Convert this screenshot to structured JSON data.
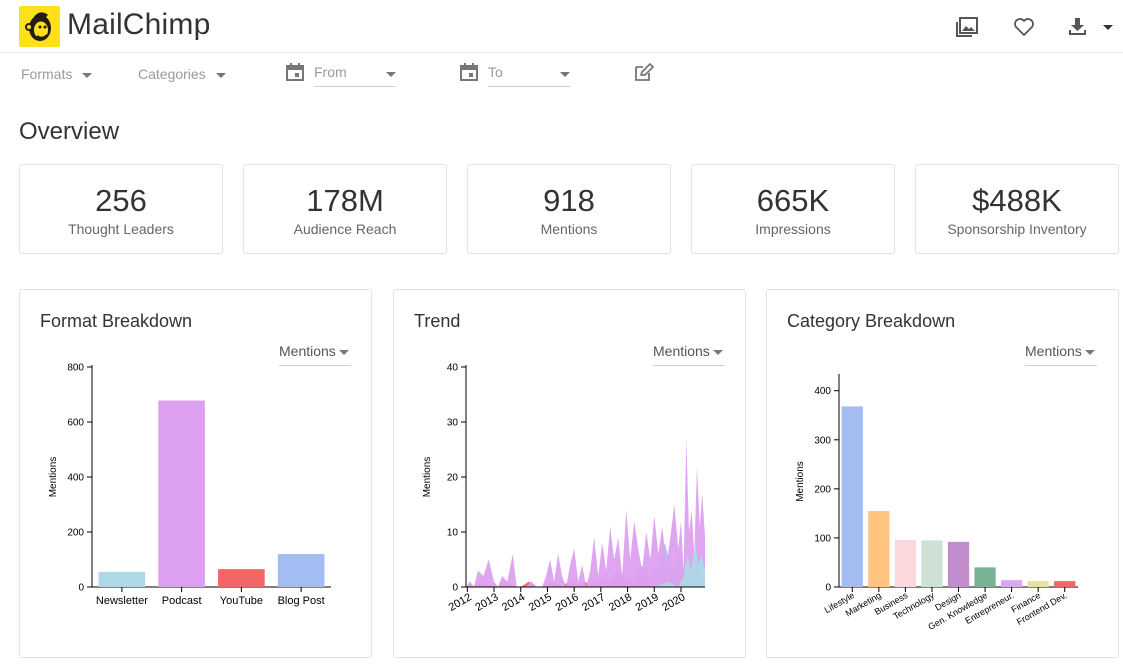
{
  "header": {
    "app_title": "MailChimp",
    "icons": [
      "image-gallery-icon",
      "heart-icon",
      "download-icon",
      "caret-down-icon"
    ]
  },
  "filters": {
    "formats_label": "Formats",
    "categories_label": "Categories",
    "from_placeholder": "From",
    "to_placeholder": "To"
  },
  "overview": {
    "title": "Overview",
    "stats": [
      {
        "value": "256",
        "label": "Thought Leaders"
      },
      {
        "value": "178M",
        "label": "Audience Reach"
      },
      {
        "value": "918",
        "label": "Mentions"
      },
      {
        "value": "665K",
        "label": "Impressions"
      },
      {
        "value": "$488K",
        "label": "Sponsorship Inventory"
      }
    ]
  },
  "panels": {
    "format": {
      "title": "Format Breakdown",
      "metric": "Mentions"
    },
    "trend": {
      "title": "Trend",
      "metric": "Mentions"
    },
    "category": {
      "title": "Category Breakdown",
      "metric": "Mentions"
    }
  },
  "chart_data": [
    {
      "type": "bar",
      "title": "Format Breakdown",
      "xlabel": "",
      "ylabel": "Mentions",
      "ylim": [
        0,
        800
      ],
      "yticks": [
        0,
        200,
        400,
        600,
        800
      ],
      "categories": [
        "Newsletter",
        "Podcast",
        "YouTube",
        "Blog Post"
      ],
      "values": [
        55,
        678,
        65,
        120
      ],
      "colors": [
        "#add8e6",
        "#dda0f0",
        "#f26666",
        "#a3bdf2"
      ]
    },
    {
      "type": "area",
      "title": "Trend",
      "xlabel": "",
      "ylabel": "Mentions",
      "ylim": [
        0,
        40
      ],
      "yticks": [
        0,
        10,
        20,
        30,
        40
      ],
      "xlim": [
        2011.95,
        2020.9
      ],
      "xticks": [
        "2012",
        "2013",
        "2014",
        "2015",
        "2016",
        "2017",
        "2018",
        "2019",
        "2020"
      ],
      "series": [
        {
          "color": "#add8e6",
          "x": [
            2011.95,
            2014.9,
            2016.0,
            2017.0,
            2017.5,
            2018.5,
            2019.0,
            2019.5,
            2019.9,
            2020.1,
            2020.25,
            2020.35,
            2020.45,
            2020.55,
            2020.65,
            2020.75,
            2020.9
          ],
          "y": [
            0,
            0,
            0,
            0,
            0,
            0,
            0,
            1,
            0,
            2,
            6,
            3,
            5,
            8,
            4,
            6,
            3
          ]
        },
        {
          "color": "#dda0f0",
          "x": [
            2011.95,
            2012.1,
            2012.25,
            2012.4,
            2012.6,
            2012.8,
            2013.0,
            2013.15,
            2013.3,
            2013.5,
            2013.7,
            2013.85,
            2014.0,
            2014.2,
            2014.4,
            2014.6,
            2014.8,
            2014.95,
            2015.1,
            2015.25,
            2015.4,
            2015.55,
            2015.7,
            2015.85,
            2016.0,
            2016.15,
            2016.3,
            2016.45,
            2016.6,
            2016.75,
            2016.9,
            2017.05,
            2017.2,
            2017.35,
            2017.5,
            2017.65,
            2017.8,
            2017.95,
            2018.1,
            2018.25,
            2018.4,
            2018.55,
            2018.7,
            2018.85,
            2019.0,
            2019.15,
            2019.3,
            2019.45,
            2019.6,
            2019.75,
            2019.9,
            2020.0,
            2020.1,
            2020.2,
            2020.3,
            2020.4,
            2020.5,
            2020.6,
            2020.7,
            2020.8,
            2020.9
          ],
          "y": [
            0,
            1,
            0,
            3,
            2,
            5,
            1,
            0,
            2,
            1,
            6,
            0,
            0,
            0,
            1,
            0,
            0,
            2,
            5,
            1,
            6,
            2,
            0,
            4,
            7,
            1,
            4,
            0,
            3,
            9,
            2,
            8,
            3,
            11,
            5,
            9,
            2,
            14,
            5,
            12,
            7,
            3,
            10,
            5,
            13,
            6,
            11,
            4,
            9,
            15,
            7,
            12,
            3,
            27,
            10,
            14,
            6,
            22,
            11,
            17,
            9
          ]
        },
        {
          "color": "#f26666",
          "x": [
            2011.95,
            2012.2,
            2012.5,
            2012.8,
            2013.1,
            2013.4,
            2013.7,
            2014.0,
            2014.3,
            2014.6,
            2014.9,
            2015.2,
            2015.5,
            2015.8,
            2016.1,
            2016.4,
            2016.7,
            2017.0,
            2017.3,
            2017.6,
            2017.9,
            2018.2,
            2018.5,
            2018.8,
            2019.1,
            2019.4,
            2019.6,
            2019.8,
            2020.0,
            2020.15,
            2020.3,
            2020.45,
            2020.6,
            2020.75,
            2020.9
          ],
          "y": [
            0,
            0,
            1,
            0,
            0,
            1,
            0,
            0,
            1,
            0,
            0,
            1,
            0,
            1,
            0,
            1,
            0,
            1,
            0,
            2,
            1,
            0,
            2,
            1,
            0,
            2,
            1,
            0,
            2,
            3,
            1,
            3,
            0,
            2,
            1
          ]
        },
        {
          "color": "#a3bdf2",
          "x": [
            2011.95,
            2012.3,
            2012.6,
            2013.0,
            2013.3,
            2013.7,
            2014.0,
            2014.3,
            2014.6,
            2015.0,
            2015.3,
            2015.6,
            2016.0,
            2016.3,
            2016.6,
            2017.0,
            2017.3,
            2017.6,
            2017.9,
            2018.2,
            2018.5,
            2018.8,
            2019.1,
            2019.4,
            2019.7,
            2019.9,
            2020.05,
            2020.2,
            2020.35,
            2020.5,
            2020.65,
            2020.8,
            2020.9
          ],
          "y": [
            0,
            0,
            0,
            0,
            0,
            0,
            0,
            0,
            0,
            0,
            0,
            0,
            1,
            0,
            1,
            2,
            1,
            3,
            2,
            1,
            4,
            2,
            3,
            8,
            2,
            6,
            3,
            4,
            2,
            3,
            6,
            1,
            2
          ]
        }
      ]
    },
    {
      "type": "bar",
      "title": "Category Breakdown",
      "xlabel": "",
      "ylabel": "Mentions",
      "ylim": [
        0,
        430
      ],
      "yticks": [
        0,
        100,
        200,
        300,
        400
      ],
      "categories": [
        "Lifestyle",
        "Marketing",
        "Business",
        "Technology",
        "Design",
        "Gen. Knowledge",
        "Entrepreneur.",
        "Finance",
        "Frontend Dev."
      ],
      "values": [
        368,
        155,
        96,
        95,
        92,
        40,
        14,
        12,
        12
      ],
      "colors": [
        "#a3bdf2",
        "#ffc580",
        "#fcd8dc",
        "#cfe0d6",
        "#c08ccb",
        "#79b395",
        "#d8a8f2",
        "#e8e0a0",
        "#f26666"
      ]
    }
  ]
}
